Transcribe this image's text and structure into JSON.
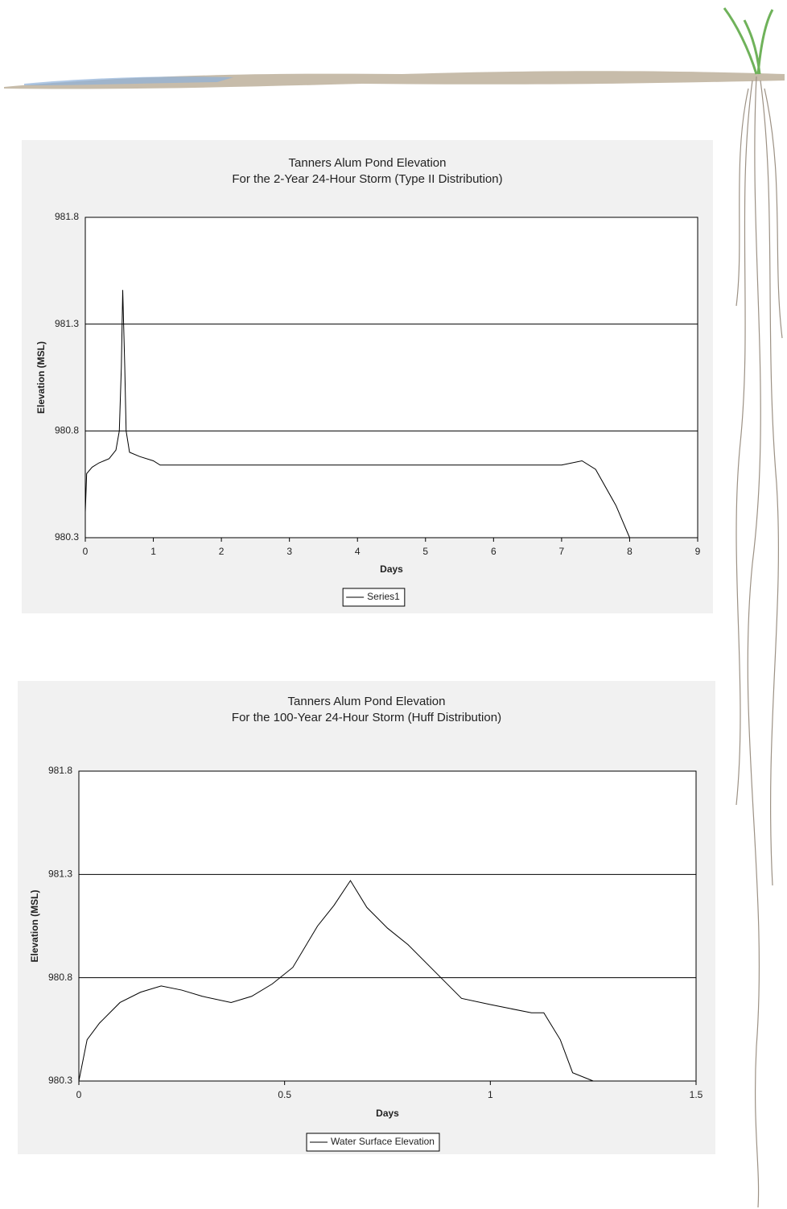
{
  "chart_data": [
    {
      "type": "line",
      "title": "Tanners Alum Pond Elevation",
      "subtitle": "For the 2-Year 24-Hour Storm (Type II Distribution)",
      "x_label": "Days",
      "y_label": "Elevation (MSL)",
      "x": [
        0,
        0.02,
        0.1,
        0.2,
        0.35,
        0.45,
        0.5,
        0.53,
        0.55,
        0.58,
        0.6,
        0.65,
        0.8,
        1.0,
        1.1,
        2,
        3,
        4,
        5,
        6,
        7.0,
        7.3,
        7.5,
        7.8,
        8.0
      ],
      "series": [
        {
          "name": "Series1",
          "color": "#000000",
          "values": [
            980.42,
            980.6,
            980.63,
            980.65,
            980.67,
            980.71,
            980.8,
            981.1,
            981.46,
            981.1,
            980.8,
            980.7,
            980.68,
            980.66,
            980.64,
            980.64,
            980.64,
            980.64,
            980.64,
            980.64,
            980.64,
            980.66,
            980.62,
            980.45,
            980.3
          ]
        }
      ],
      "xlim": [
        0,
        9
      ],
      "xticks": [
        0,
        1,
        2,
        3,
        4,
        5,
        6,
        7,
        8,
        9
      ],
      "ylim": [
        980.3,
        981.8
      ],
      "yticks": [
        980.3,
        980.8,
        981.3,
        981.8
      ],
      "grid": true,
      "legend": "bottom"
    },
    {
      "type": "line",
      "title": "Tanners Alum Pond Elevation",
      "subtitle": "For the 100-Year 24-Hour Storm (Huff Distribution)",
      "x_label": "Days",
      "y_label": "Elevation (MSL)",
      "x": [
        0,
        0.02,
        0.05,
        0.1,
        0.15,
        0.2,
        0.25,
        0.3,
        0.37,
        0.42,
        0.47,
        0.52,
        0.58,
        0.62,
        0.66,
        0.7,
        0.75,
        0.8,
        0.88,
        0.93,
        1.0,
        1.05,
        1.1,
        1.13,
        1.17,
        1.2,
        1.25
      ],
      "series": [
        {
          "name": "Water Surface Elevation",
          "color": "#000000",
          "values": [
            980.3,
            980.5,
            980.58,
            980.68,
            980.73,
            980.76,
            980.74,
            980.71,
            980.68,
            980.71,
            980.77,
            980.85,
            981.05,
            981.15,
            981.27,
            981.14,
            981.04,
            980.96,
            980.8,
            980.7,
            980.67,
            980.65,
            980.63,
            980.63,
            980.5,
            980.34,
            980.3
          ]
        }
      ],
      "xlim": [
        0,
        1.5
      ],
      "xticks": [
        0,
        0.5,
        1,
        1.5
      ],
      "ylim": [
        980.3,
        981.8
      ],
      "yticks": [
        980.3,
        980.8,
        981.3,
        981.8
      ],
      "grid": true,
      "legend": "bottom"
    }
  ]
}
